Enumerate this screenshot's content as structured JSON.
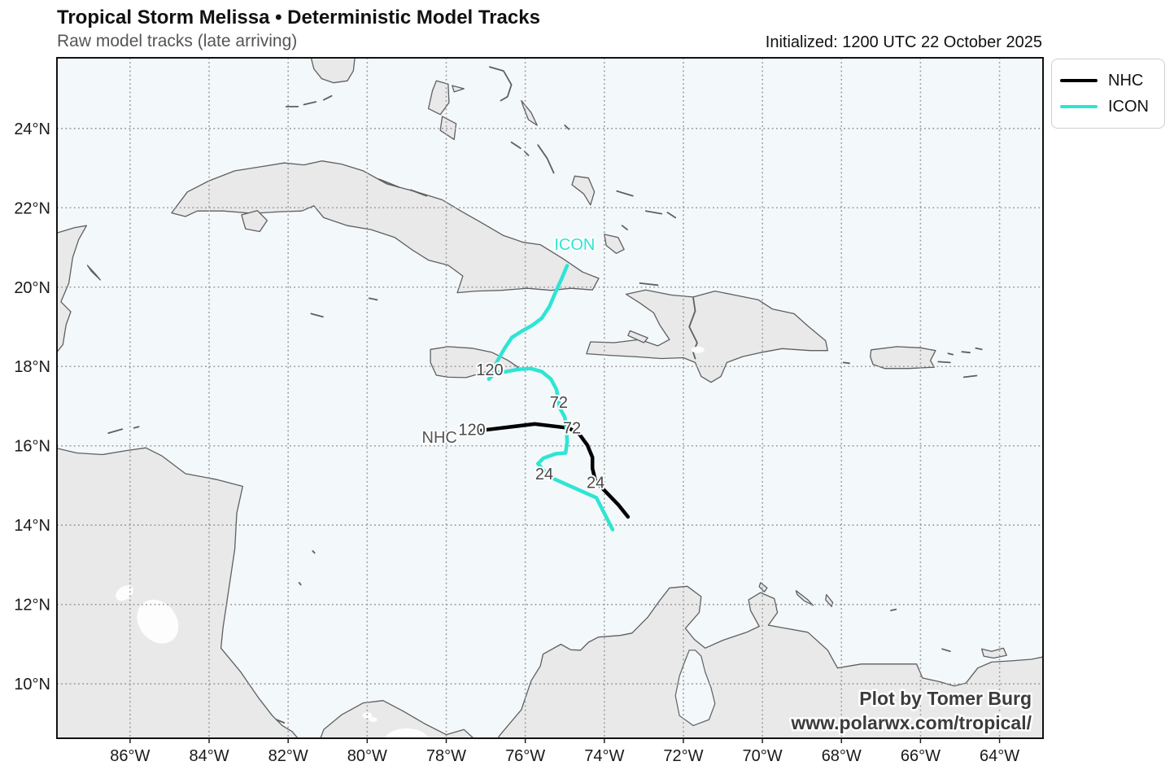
{
  "header": {
    "title": "Tropical Storm Melissa • Deterministic Model Tracks",
    "subtitle": "Raw model tracks (late arriving)",
    "initialized": "Initialized: 1200 UTC 22 October 2025"
  },
  "legend": {
    "items": [
      {
        "label": "NHC",
        "color": "#000000"
      },
      {
        "label": "ICON",
        "color": "#2ee5d3"
      }
    ]
  },
  "attribution": {
    "line1": "Plot by Tomer Burg",
    "line2": "www.polarwx.com/tropical/"
  },
  "axes": {
    "x_ticks": [
      {
        "value": -86,
        "label": "86°W"
      },
      {
        "value": -84,
        "label": "84°W"
      },
      {
        "value": -82,
        "label": "82°W"
      },
      {
        "value": -80,
        "label": "80°W"
      },
      {
        "value": -78,
        "label": "78°W"
      },
      {
        "value": -76,
        "label": "76°W"
      },
      {
        "value": -74,
        "label": "74°W"
      },
      {
        "value": -72,
        "label": "72°W"
      },
      {
        "value": -70,
        "label": "70°W"
      },
      {
        "value": -68,
        "label": "68°W"
      },
      {
        "value": -66,
        "label": "66°W"
      },
      {
        "value": -64,
        "label": "64°W"
      }
    ],
    "y_ticks": [
      {
        "value": 24,
        "label": "24°N"
      },
      {
        "value": 22,
        "label": "22°N"
      },
      {
        "value": 20,
        "label": "20°N"
      },
      {
        "value": 18,
        "label": "18°N"
      },
      {
        "value": 16,
        "label": "16°N"
      },
      {
        "value": 14,
        "label": "14°N"
      },
      {
        "value": 12,
        "label": "12°N"
      },
      {
        "value": 10,
        "label": "10°N"
      }
    ]
  },
  "chart_data": {
    "type": "line",
    "title": "Tropical Storm Melissa • Deterministic Model Tracks",
    "extent": {
      "lon_min": -87.85,
      "lon_max": -62.9,
      "lat_min": 8.63,
      "lat_max": 25.78
    },
    "grid": "dotted 2-degree graticule",
    "legend_position": "outside top-right",
    "series": [
      {
        "name": "NHC",
        "color": "#000000",
        "points_lon_lat": [
          [
            -73.4,
            14.21
          ],
          [
            -73.65,
            14.52
          ],
          [
            -73.95,
            14.83
          ],
          [
            -74.22,
            15.1
          ],
          [
            -74.3,
            15.43
          ],
          [
            -74.3,
            15.71
          ],
          [
            -74.43,
            16.02
          ],
          [
            -74.63,
            16.29
          ],
          [
            -74.9,
            16.45
          ],
          [
            -75.76,
            16.55
          ],
          [
            -77.1,
            16.39
          ]
        ]
      },
      {
        "name": "ICON",
        "color": "#2ee5d3",
        "points_lon_lat": [
          [
            -73.79,
            13.89
          ],
          [
            -74.2,
            14.69
          ],
          [
            -75.39,
            15.22
          ],
          [
            -75.68,
            15.55
          ],
          [
            -75.54,
            15.69
          ],
          [
            -75.23,
            15.8
          ],
          [
            -74.98,
            15.82
          ],
          [
            -74.94,
            16.1
          ],
          [
            -74.96,
            16.41
          ],
          [
            -75.0,
            16.72
          ],
          [
            -75.13,
            16.96
          ],
          [
            -75.17,
            17.19
          ],
          [
            -75.21,
            17.42
          ],
          [
            -75.35,
            17.68
          ],
          [
            -75.58,
            17.87
          ],
          [
            -75.87,
            17.95
          ],
          [
            -76.17,
            17.93
          ],
          [
            -76.48,
            17.87
          ],
          [
            -76.75,
            17.85
          ],
          [
            -76.92,
            17.68
          ],
          [
            -76.71,
            18.13
          ],
          [
            -76.52,
            18.46
          ],
          [
            -76.34,
            18.73
          ],
          [
            -76.09,
            18.89
          ],
          [
            -75.82,
            19.04
          ],
          [
            -75.58,
            19.22
          ],
          [
            -75.39,
            19.51
          ],
          [
            -75.23,
            19.88
          ],
          [
            -75.08,
            20.21
          ],
          [
            -74.94,
            20.54
          ]
        ]
      }
    ],
    "annotations": [
      {
        "text": "NHC",
        "lon": -78.17,
        "lat": 16.22,
        "color": "#555555",
        "size": 20
      },
      {
        "text": "120",
        "lon": -77.35,
        "lat": 16.42,
        "color": "#474747",
        "size": 20
      },
      {
        "text": "72",
        "lon": -74.82,
        "lat": 16.46,
        "color": "#474747",
        "size": 20
      },
      {
        "text": "24",
        "lon": -74.22,
        "lat": 15.08,
        "color": "#474747",
        "size": 20
      },
      {
        "text": "120",
        "lon": -76.9,
        "lat": 17.92,
        "color": "#474747",
        "size": 20
      },
      {
        "text": "72",
        "lon": -75.15,
        "lat": 17.1,
        "color": "#474747",
        "size": 20
      },
      {
        "text": "24",
        "lon": -75.52,
        "lat": 15.3,
        "color": "#474747",
        "size": 20
      },
      {
        "text": "ICON",
        "lon": -74.75,
        "lat": 21.08,
        "color": "#2ee5d3",
        "size": 20
      }
    ]
  },
  "map_style": {
    "ocean": "#f3f8fb",
    "land": "#e9e9e9",
    "coast": "#5f5f5f",
    "grid": "#9a9a9a",
    "frame": "#111111"
  }
}
